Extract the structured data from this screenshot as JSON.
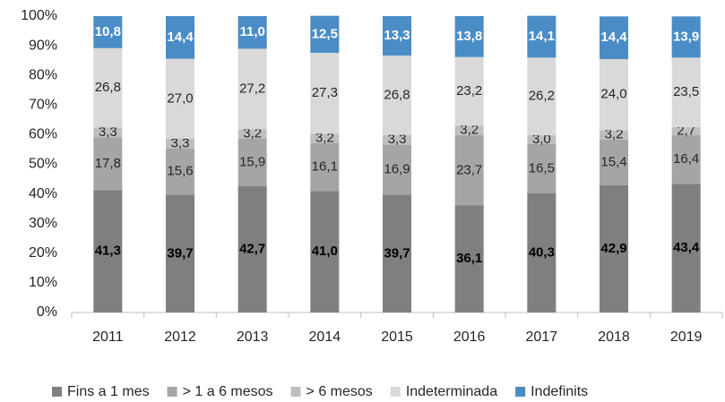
{
  "chart_data": {
    "type": "stacked_bar",
    "categories": [
      "2011",
      "2012",
      "2013",
      "2014",
      "2015",
      "2016",
      "2017",
      "2018",
      "2019"
    ],
    "series": [
      {
        "name": "Fins a 1 mes",
        "color": "#7f7f7f",
        "values": [
          41.3,
          39.7,
          42.7,
          41.0,
          39.7,
          36.1,
          40.3,
          42.9,
          43.4
        ],
        "value_labels": [
          "41,3",
          "39,7",
          "42,7",
          "41,0",
          "39,7",
          "36,1",
          "40,3",
          "42,9",
          "43,4"
        ]
      },
      {
        "name": "> 1 a 6 mesos",
        "color": "#a5a5a5",
        "values": [
          17.8,
          15.6,
          15.9,
          16.1,
          16.9,
          23.7,
          16.5,
          15.4,
          16.4
        ],
        "value_labels": [
          "17,8",
          "15,6",
          "15,9",
          "16,1",
          "16,9",
          "23,7",
          "16,5",
          "15,4",
          "16,4"
        ]
      },
      {
        "name": "> 6 mesos",
        "color": "#bfbfbf",
        "values": [
          3.3,
          3.3,
          3.2,
          3.2,
          3.3,
          3.2,
          3.0,
          3.2,
          2.7
        ],
        "value_labels": [
          "3,3",
          "3,3",
          "3,2",
          "3,2",
          "3,3",
          "3,2",
          "3,0",
          "3,2",
          "2,7"
        ]
      },
      {
        "name": "Indeterminada",
        "color": "#d9d9d9",
        "values": [
          26.8,
          27.0,
          27.2,
          27.3,
          26.8,
          23.2,
          26.2,
          24.0,
          23.5
        ],
        "value_labels": [
          "26,8",
          "27,0",
          "27,2",
          "27,3",
          "26,8",
          "23,2",
          "26,2",
          "24,0",
          "23,5"
        ]
      },
      {
        "name": "Indefinits",
        "color": "#4a8dc6",
        "values": [
          10.8,
          14.4,
          11.0,
          12.5,
          13.3,
          13.8,
          14.1,
          14.4,
          13.9
        ],
        "value_labels": [
          "10,8",
          "14,4",
          "11,0",
          "12,5",
          "13,3",
          "13,8",
          "14,1",
          "14,4",
          "13,9"
        ]
      }
    ],
    "ylim": [
      0,
      100
    ],
    "yticks": [
      {
        "value": 0,
        "label": "0%"
      },
      {
        "value": 10,
        "label": "10%"
      },
      {
        "value": 20,
        "label": "20%"
      },
      {
        "value": 30,
        "label": "30%"
      },
      {
        "value": 40,
        "label": "40%"
      },
      {
        "value": 50,
        "label": "50%"
      },
      {
        "value": 60,
        "label": "60%"
      },
      {
        "value": 70,
        "label": "70%"
      },
      {
        "value": 80,
        "label": "80%"
      },
      {
        "value": 90,
        "label": "90%"
      },
      {
        "value": 100,
        "label": "100%"
      }
    ],
    "grid": false,
    "legend": "bottom"
  }
}
